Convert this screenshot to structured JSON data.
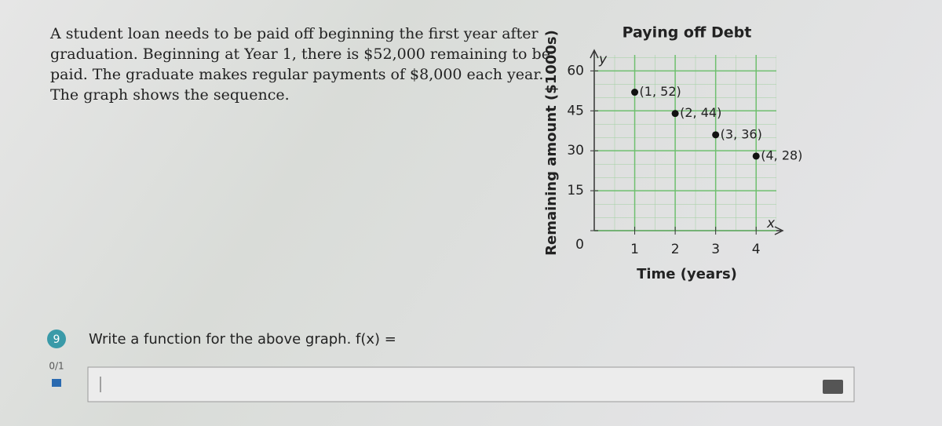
{
  "problem": {
    "lines": [
      "A student loan needs to be paid off beginning the first year after",
      "graduation. Beginning at Year 1, there is $52,000 remaining to be",
      "paid. The graduate makes regular payments of $8,000 each year.",
      "The graph shows the sequence."
    ]
  },
  "question": {
    "number": "9",
    "text": "Write a function for the above graph.  f(x) =",
    "score": "0/1"
  },
  "chart_data": {
    "type": "scatter",
    "title": "Paying off Debt",
    "x_label": "Time (years)",
    "y_label": "Remaining amount ($1000s)",
    "x_axis_letter": "x",
    "y_axis_letter": "y",
    "x": [
      1,
      2,
      3,
      4
    ],
    "values": [
      52,
      44,
      36,
      28
    ],
    "value_labels": [
      "(1, 52)",
      "(2, 44)",
      "(3, 36)",
      "(4, 28)"
    ],
    "color": "#111111",
    "xlim": [
      0,
      4.5
    ],
    "ylim": [
      0,
      66
    ],
    "xticks": [
      1,
      2,
      3,
      4
    ],
    "yticks": [
      0,
      15,
      30,
      45,
      60
    ],
    "grid": true
  }
}
